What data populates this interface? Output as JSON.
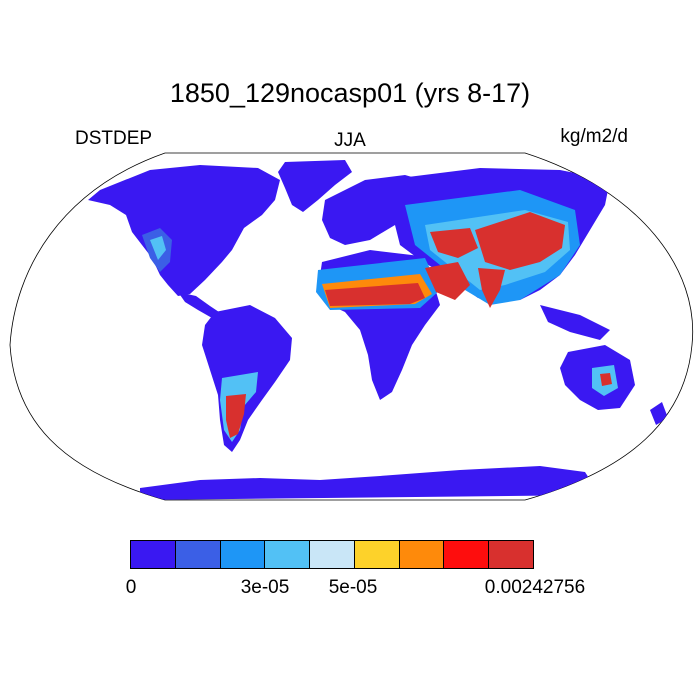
{
  "title": "1850_129nocasp01 (yrs 8-17)",
  "labels": {
    "left": "DSTDEP",
    "center": "JJA",
    "right": "kg/m2/d"
  },
  "colorbar": {
    "colors": [
      "#3a18f2",
      "#3b5fe6",
      "#1e96f6",
      "#52c1f5",
      "#c9e6f7",
      "#fdd22a",
      "#fe8a0b",
      "#fe0d0d",
      "#d8302e"
    ],
    "tick_labels": [
      "0",
      "3e-05",
      "5e-05",
      "0.00242756"
    ]
  }
}
